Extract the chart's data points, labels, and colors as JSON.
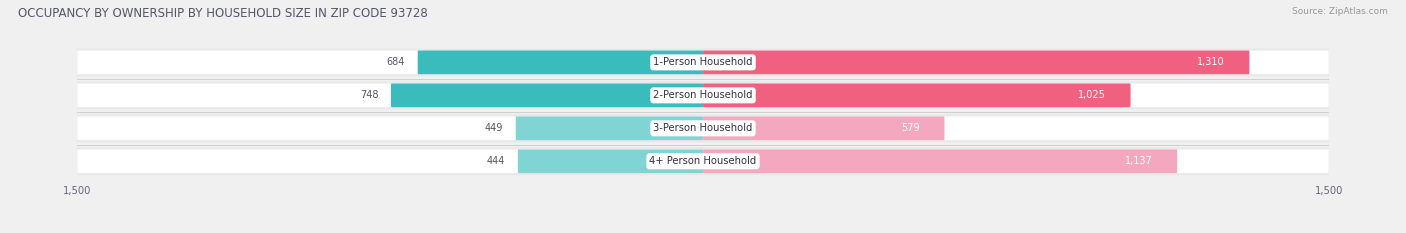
{
  "title": "OCCUPANCY BY OWNERSHIP BY HOUSEHOLD SIZE IN ZIP CODE 93728",
  "source": "Source: ZipAtlas.com",
  "categories": [
    "1-Person Household",
    "2-Person Household",
    "3-Person Household",
    "4+ Person Household"
  ],
  "owner_values": [
    684,
    748,
    449,
    444
  ],
  "renter_values": [
    1310,
    1025,
    579,
    1137
  ],
  "owner_color": "#3BBCBC",
  "renter_color_dark": "#F06080",
  "renter_color_light": "#F4A8C0",
  "owner_color_light": "#80D4D4",
  "bg_color": "#f0f0f0",
  "bar_bg_color": "#ffffff",
  "row_bg_color": "#e8e8e8",
  "xlim": 1500,
  "bar_height": 0.72,
  "title_fontsize": 8.5,
  "label_fontsize": 7.2,
  "value_fontsize": 7.0,
  "tick_fontsize": 7.2,
  "source_fontsize": 6.5
}
